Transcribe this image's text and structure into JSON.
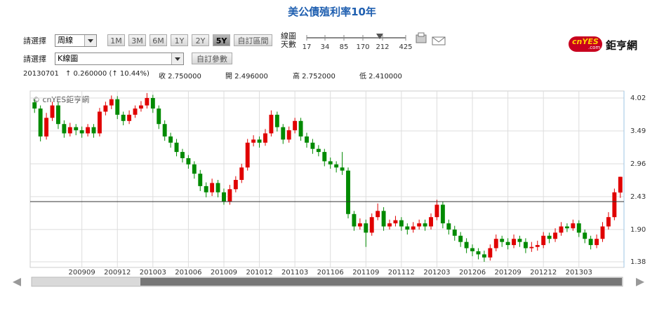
{
  "ui": {
    "title": "美公債殖利率10年",
    "select_label_1": "請選擇",
    "period_select": "周線",
    "range_buttons": [
      "1M",
      "3M",
      "6M",
      "1Y",
      "2Y",
      "5Y"
    ],
    "custom_range": "自訂區間",
    "slider_label_1": "線圖",
    "slider_label_2": "天數",
    "slider_ticks": [
      "17",
      "34",
      "85",
      "170",
      "212",
      "425"
    ],
    "select_label_2": "請選擇",
    "chart_select": "K線圖",
    "custom_params": "自訂參數",
    "logo_en": "cnYES",
    "logo_sub": ".com",
    "logo_cn": "鉅亨網",
    "info": {
      "date": "20130701",
      "change": "↑ 0.260000 (↑ 10.44%)",
      "close": "收 2.750000",
      "open": "開 2.496000",
      "high": "高 2.752000",
      "low": "低 2.410000"
    }
  },
  "chart_data": {
    "type": "candlestick",
    "watermark": "© cnYES鉅亨網",
    "categories": [
      null,
      null,
      null,
      null,
      null,
      null,
      null,
      null,
      "200909",
      null,
      null,
      null,
      null,
      null,
      "200912",
      null,
      null,
      null,
      null,
      null,
      "201003",
      null,
      null,
      null,
      null,
      null,
      "201006",
      null,
      null,
      null,
      null,
      null,
      "201009",
      null,
      null,
      null,
      null,
      null,
      "201012",
      null,
      null,
      null,
      null,
      null,
      "201103",
      null,
      null,
      null,
      null,
      null,
      "201106",
      null,
      null,
      null,
      null,
      null,
      "201109",
      null,
      null,
      null,
      null,
      null,
      "201112",
      null,
      null,
      null,
      null,
      null,
      "201203",
      null,
      null,
      null,
      null,
      null,
      "201206",
      null,
      null,
      null,
      null,
      null,
      "201209",
      null,
      null,
      null,
      null,
      null,
      "201212",
      null,
      null,
      null,
      null,
      null,
      "201303",
      null,
      null,
      null,
      null,
      null,
      null,
      null
    ],
    "open": [
      3.95,
      3.85,
      3.4,
      3.7,
      3.9,
      3.6,
      3.45,
      3.55,
      3.5,
      3.45,
      3.55,
      3.45,
      3.8,
      3.9,
      4.0,
      3.75,
      3.65,
      3.75,
      3.85,
      3.9,
      4.02,
      3.85,
      3.6,
      3.4,
      3.3,
      3.15,
      3.05,
      2.95,
      2.8,
      2.6,
      2.5,
      2.65,
      2.5,
      2.35,
      2.55,
      2.7,
      2.9,
      3.3,
      3.35,
      3.3,
      3.45,
      3.75,
      3.55,
      3.35,
      3.5,
      3.65,
      3.4,
      3.3,
      3.2,
      3.15,
      3.0,
      2.95,
      2.9,
      2.85,
      2.15,
      1.95,
      2.0,
      1.85,
      2.1,
      2.2,
      1.95,
      2.0,
      2.05,
      1.95,
      1.9,
      1.95,
      2.0,
      1.95,
      2.1,
      2.3,
      2.0,
      1.9,
      1.8,
      1.7,
      1.6,
      1.55,
      1.5,
      1.45,
      1.6,
      1.75,
      1.7,
      1.65,
      1.75,
      1.7,
      1.6,
      1.62,
      1.65,
      1.8,
      1.75,
      1.85,
      1.95,
      1.92,
      2.0,
      1.85,
      1.75,
      1.65,
      1.75,
      1.95,
      2.1,
      2.496
    ],
    "high": [
      4.0,
      3.9,
      3.78,
      3.96,
      3.95,
      3.66,
      3.62,
      3.6,
      3.56,
      3.6,
      3.6,
      3.86,
      3.96,
      4.06,
      4.05,
      3.8,
      3.82,
      3.9,
      3.97,
      4.1,
      4.07,
      3.9,
      3.66,
      3.46,
      3.36,
      3.2,
      3.1,
      3.0,
      2.86,
      2.66,
      2.72,
      2.7,
      2.56,
      2.62,
      2.76,
      2.96,
      3.36,
      3.42,
      3.4,
      3.52,
      3.82,
      3.8,
      3.6,
      3.56,
      3.7,
      3.7,
      3.46,
      3.36,
      3.26,
      3.2,
      3.06,
      3.0,
      3.15,
      2.9,
      2.2,
      2.08,
      2.06,
      2.16,
      2.32,
      2.26,
      2.06,
      2.12,
      2.1,
      2.0,
      2.02,
      2.06,
      2.06,
      2.16,
      2.38,
      2.35,
      2.06,
      1.96,
      1.86,
      1.76,
      1.66,
      1.6,
      1.56,
      1.66,
      1.82,
      1.8,
      1.76,
      1.82,
      1.8,
      1.76,
      1.7,
      1.72,
      1.86,
      1.85,
      1.92,
      2.02,
      2.0,
      2.06,
      2.05,
      1.9,
      1.8,
      1.82,
      2.02,
      2.18,
      2.56,
      2.752
    ],
    "low": [
      3.78,
      3.32,
      3.35,
      3.65,
      3.52,
      3.38,
      3.4,
      3.42,
      3.38,
      3.4,
      3.38,
      3.4,
      3.74,
      3.84,
      3.68,
      3.58,
      3.6,
      3.7,
      3.8,
      3.85,
      3.78,
      3.52,
      3.33,
      3.22,
      3.08,
      2.98,
      2.88,
      2.72,
      2.52,
      2.42,
      2.44,
      2.42,
      2.3,
      2.3,
      2.5,
      2.65,
      2.85,
      3.24,
      3.22,
      3.25,
      3.4,
      3.48,
      3.28,
      3.3,
      3.45,
      3.33,
      3.22,
      3.12,
      3.08,
      2.92,
      2.88,
      2.82,
      2.78,
      2.08,
      1.88,
      1.9,
      1.62,
      1.8,
      2.05,
      1.88,
      1.9,
      1.95,
      1.88,
      1.82,
      1.85,
      1.9,
      1.88,
      1.9,
      2.05,
      1.92,
      1.82,
      1.72,
      1.62,
      1.52,
      1.47,
      1.42,
      1.38,
      1.4,
      1.55,
      1.62,
      1.58,
      1.6,
      1.62,
      1.52,
      1.54,
      1.56,
      1.6,
      1.68,
      1.7,
      1.8,
      1.86,
      1.88,
      1.78,
      1.68,
      1.58,
      1.6,
      1.7,
      1.9,
      2.05,
      2.41
    ],
    "close": [
      3.85,
      3.4,
      3.7,
      3.9,
      3.6,
      3.45,
      3.55,
      3.5,
      3.45,
      3.55,
      3.45,
      3.8,
      3.9,
      4.0,
      3.75,
      3.65,
      3.75,
      3.85,
      3.9,
      4.02,
      3.85,
      3.6,
      3.4,
      3.3,
      3.15,
      3.05,
      2.95,
      2.8,
      2.6,
      2.5,
      2.65,
      2.5,
      2.35,
      2.55,
      2.7,
      2.9,
      3.3,
      3.35,
      3.3,
      3.45,
      3.75,
      3.55,
      3.35,
      3.5,
      3.65,
      3.4,
      3.3,
      3.2,
      3.15,
      3.0,
      2.95,
      2.9,
      2.85,
      2.15,
      1.95,
      2.0,
      1.85,
      2.1,
      2.2,
      1.95,
      2.0,
      2.05,
      1.95,
      1.9,
      1.95,
      2.0,
      1.95,
      2.1,
      2.3,
      2.0,
      1.9,
      1.8,
      1.7,
      1.6,
      1.55,
      1.5,
      1.45,
      1.6,
      1.75,
      1.7,
      1.65,
      1.75,
      1.7,
      1.6,
      1.62,
      1.65,
      1.8,
      1.75,
      1.85,
      1.95,
      1.92,
      2.0,
      1.85,
      1.75,
      1.65,
      1.75,
      1.95,
      2.1,
      2.5,
      2.75
    ],
    "up_color": "#e00000",
    "down_color": "#008a00",
    "reference_line": 2.35,
    "ylim": [
      1.29,
      4.11
    ],
    "yticks": [
      4.02,
      3.49,
      2.96,
      2.43,
      {
        "value": 1.9,
        "label": "1.90"
      },
      1.38
    ],
    "grid": true
  }
}
